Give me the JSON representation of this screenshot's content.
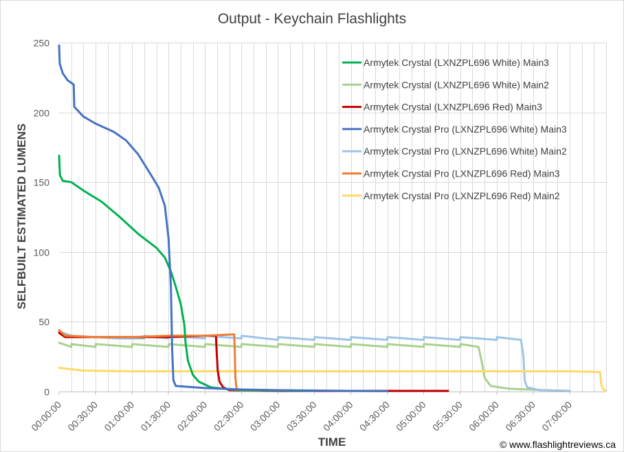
{
  "chart_data": {
    "type": "line",
    "title": "Output - Keychain Flashlights",
    "xlabel": "TIME",
    "ylabel": "SELFBUILT ESTIMATED LUMENS",
    "ylim": [
      0,
      250
    ],
    "xlim": [
      "00:00:00",
      "07:30:00"
    ],
    "yticks": [
      0,
      50,
      100,
      150,
      200,
      250
    ],
    "xticks": [
      "00:00:00",
      "00:30:00",
      "01:00:00",
      "01:30:00",
      "02:00:00",
      "02:30:00",
      "03:00:00",
      "03:30:00",
      "04:00:00",
      "04:30:00",
      "05:00:00",
      "05:30:00",
      "06:00:00",
      "06:30:00",
      "07:00:00"
    ],
    "grid": "vertical and horizontal",
    "legend": "top-right",
    "credit": "© www.flashlightreviews.ca",
    "series": [
      {
        "name": "Armytek Crystal (LXNZPL696 White) Main3",
        "color": "#00b050",
        "points": [
          [
            "00:00:00",
            169
          ],
          [
            "00:00:40",
            155
          ],
          [
            "00:03:00",
            151
          ],
          [
            "00:10:00",
            150
          ],
          [
            "00:20:00",
            144
          ],
          [
            "00:35:00",
            136
          ],
          [
            "00:50:00",
            125
          ],
          [
            "01:05:00",
            113
          ],
          [
            "01:20:00",
            103
          ],
          [
            "01:27:00",
            96
          ],
          [
            "01:32:00",
            86
          ],
          [
            "01:36:00",
            75
          ],
          [
            "01:40:00",
            63
          ],
          [
            "01:43:00",
            48
          ],
          [
            "01:44:00",
            35
          ],
          [
            "01:46:00",
            22
          ],
          [
            "01:50:00",
            12
          ],
          [
            "01:55:00",
            7
          ],
          [
            "02:05:00",
            3
          ],
          [
            "02:15:00",
            2
          ],
          [
            "02:30:00",
            1
          ],
          [
            "03:30:00",
            0.5
          ]
        ]
      },
      {
        "name": "Armytek Crystal (LXNZPL696 White) Main2",
        "color": "#a9d18e",
        "points": [
          [
            "00:00:00",
            35
          ],
          [
            "00:10:00",
            32
          ],
          [
            "00:10:10",
            34
          ],
          [
            "00:30:00",
            32
          ],
          [
            "00:30:10",
            34
          ],
          [
            "01:00:00",
            32
          ],
          [
            "01:00:10",
            34
          ],
          [
            "01:30:00",
            32
          ],
          [
            "01:30:10",
            34
          ],
          [
            "02:00:00",
            32
          ],
          [
            "02:00:10",
            34
          ],
          [
            "02:30:00",
            32
          ],
          [
            "02:30:10",
            34
          ],
          [
            "03:00:00",
            32
          ],
          [
            "03:00:10",
            34
          ],
          [
            "03:30:00",
            32
          ],
          [
            "03:30:10",
            34
          ],
          [
            "04:00:00",
            32
          ],
          [
            "04:00:10",
            34
          ],
          [
            "04:30:00",
            32
          ],
          [
            "04:30:10",
            34
          ],
          [
            "05:00:00",
            32
          ],
          [
            "05:00:10",
            34
          ],
          [
            "05:30:00",
            32
          ],
          [
            "05:30:10",
            34
          ],
          [
            "05:45:00",
            32
          ],
          [
            "05:48:00",
            20
          ],
          [
            "05:50:00",
            10
          ],
          [
            "05:55:00",
            4
          ],
          [
            "06:10:00",
            2
          ],
          [
            "06:40:00",
            1
          ],
          [
            "07:00:00",
            0.5
          ]
        ]
      },
      {
        "name": "Armytek Crystal (LXNZPL696 Red)  Main3",
        "color": "#c00000",
        "points": [
          [
            "00:00:00",
            42
          ],
          [
            "00:05:00",
            39
          ],
          [
            "00:30:00",
            39
          ],
          [
            "01:00:00",
            39
          ],
          [
            "01:30:00",
            39
          ],
          [
            "02:00:00",
            40
          ],
          [
            "02:09:00",
            40
          ],
          [
            "02:09:30",
            30
          ],
          [
            "02:10:30",
            15
          ],
          [
            "02:12:00",
            7
          ],
          [
            "02:15:00",
            3
          ],
          [
            "02:20:00",
            1
          ],
          [
            "03:00:00",
            0.5
          ],
          [
            "04:00:00",
            0.5
          ],
          [
            "05:00:00",
            0.5
          ],
          [
            "05:20:00",
            0.5
          ]
        ]
      },
      {
        "name": "Armytek Crystal Pro (LXNZPL696 White) Main3",
        "color": "#4472c4",
        "points": [
          [
            "00:00:00",
            248
          ],
          [
            "00:00:30",
            235
          ],
          [
            "00:03:00",
            228
          ],
          [
            "00:07:00",
            223
          ],
          [
            "00:12:00",
            220
          ],
          [
            "00:12:30",
            204
          ],
          [
            "00:20:00",
            197
          ],
          [
            "00:30:00",
            192
          ],
          [
            "00:45:00",
            186
          ],
          [
            "00:55:00",
            180
          ],
          [
            "01:05:00",
            170
          ],
          [
            "01:15:00",
            156
          ],
          [
            "01:22:00",
            146
          ],
          [
            "01:27:00",
            133
          ],
          [
            "01:30:00",
            110
          ],
          [
            "01:32:00",
            75
          ],
          [
            "01:33:00",
            30
          ],
          [
            "01:34:00",
            8
          ],
          [
            "01:36:00",
            4
          ],
          [
            "02:00:00",
            2.5
          ],
          [
            "02:30:00",
            1.5
          ],
          [
            "03:00:00",
            1
          ],
          [
            "04:00:00",
            0.5
          ],
          [
            "04:30:00",
            0.3
          ]
        ]
      },
      {
        "name": "Armytek Crystal Pro (LXNZPL696 White) Main2",
        "color": "#9dc3e6",
        "points": [
          [
            "00:00:00",
            43
          ],
          [
            "00:10:00",
            40
          ],
          [
            "00:30:00",
            39
          ],
          [
            "00:50:00",
            38
          ],
          [
            "01:10:00",
            38
          ],
          [
            "01:10:10",
            40
          ],
          [
            "01:30:00",
            38
          ],
          [
            "01:30:10",
            40
          ],
          [
            "02:00:00",
            38
          ],
          [
            "02:00:10",
            40
          ],
          [
            "02:30:00",
            38
          ],
          [
            "02:30:10",
            40
          ],
          [
            "03:00:00",
            37
          ],
          [
            "03:00:10",
            39
          ],
          [
            "03:30:00",
            37
          ],
          [
            "03:30:10",
            39
          ],
          [
            "04:00:00",
            37
          ],
          [
            "04:00:10",
            39
          ],
          [
            "04:30:00",
            37
          ],
          [
            "04:30:10",
            39
          ],
          [
            "05:00:00",
            37
          ],
          [
            "05:00:10",
            39
          ],
          [
            "05:30:00",
            37
          ],
          [
            "05:30:10",
            39
          ],
          [
            "06:00:00",
            37
          ],
          [
            "06:00:10",
            39
          ],
          [
            "06:20:00",
            37
          ],
          [
            "06:22:00",
            25
          ],
          [
            "06:23:00",
            8
          ],
          [
            "06:25:00",
            3
          ],
          [
            "06:30:00",
            2
          ],
          [
            "06:35:00",
            1
          ],
          [
            "07:00:00",
            0.5
          ]
        ]
      },
      {
        "name": "Armytek Crystal Pro (LXNZPL696 Red) Main3",
        "color": "#ed7d31",
        "points": [
          [
            "00:00:00",
            44
          ],
          [
            "00:05:00",
            40
          ],
          [
            "00:30:00",
            39
          ],
          [
            "01:00:00",
            39
          ],
          [
            "01:30:00",
            40
          ],
          [
            "02:00:00",
            40
          ],
          [
            "02:24:00",
            41
          ],
          [
            "02:24:30",
            30
          ],
          [
            "02:25:00",
            10
          ],
          [
            "02:26:00",
            2
          ],
          [
            "02:30:00",
            1
          ],
          [
            "02:45:00",
            0.5
          ]
        ]
      },
      {
        "name": "Armytek Crystal Pro (LXNZPL696 Red) Main2",
        "color": "#ffd966",
        "points": [
          [
            "00:00:00",
            17
          ],
          [
            "00:20:00",
            15
          ],
          [
            "01:00:00",
            14.5
          ],
          [
            "02:00:00",
            14.5
          ],
          [
            "03:00:00",
            14.5
          ],
          [
            "04:00:00",
            14.5
          ],
          [
            "05:00:00",
            14.5
          ],
          [
            "06:00:00",
            14.5
          ],
          [
            "07:00:00",
            14.5
          ],
          [
            "07:25:00",
            14
          ],
          [
            "07:26:00",
            5
          ],
          [
            "07:28:00",
            1
          ],
          [
            "07:30:00",
            1
          ]
        ]
      }
    ]
  }
}
